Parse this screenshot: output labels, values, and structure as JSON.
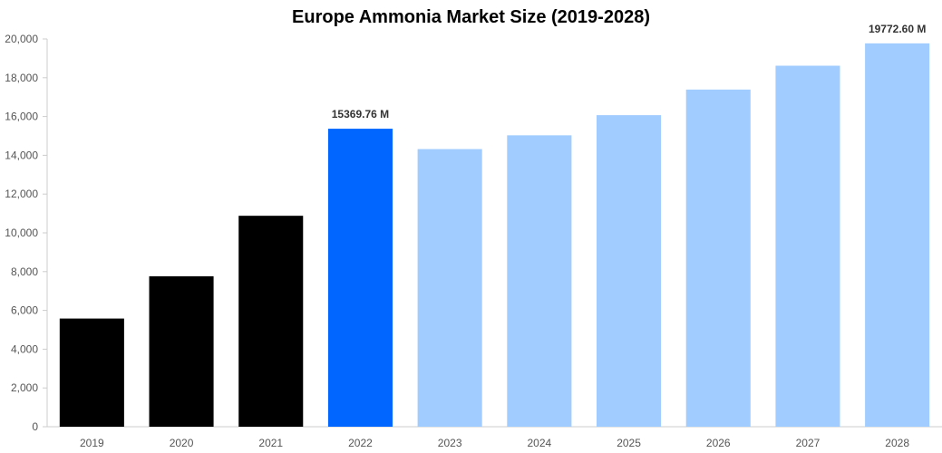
{
  "chart_data": {
    "type": "bar",
    "title": "Europe Ammonia Market Size (2019-2028)",
    "xlabel": "",
    "ylabel": "",
    "categories": [
      "2019",
      "2020",
      "2021",
      "2022",
      "2023",
      "2024",
      "2025",
      "2026",
      "2027",
      "2028"
    ],
    "values": [
      5580,
      7760,
      10880,
      15369.76,
      14320,
      15030,
      16070,
      17390,
      18620,
      19772.6
    ],
    "ylim": [
      0,
      20000
    ],
    "yticks": [
      0,
      2000,
      4000,
      6000,
      8000,
      10000,
      12000,
      14000,
      16000,
      18000,
      20000
    ],
    "ytick_labels": [
      "0",
      "2,000",
      "4,000",
      "6,000",
      "8,000",
      "10,000",
      "12,000",
      "14,000",
      "16,000",
      "18,000",
      "20,000"
    ],
    "bar_colors": [
      "#000000",
      "#000000",
      "#000000",
      "#0066ff",
      "#a0ccff",
      "#a0ccff",
      "#a0ccff",
      "#a0ccff",
      "#a0ccff",
      "#a0ccff"
    ],
    "data_labels": [
      {
        "category": "2022",
        "text": "15369.76 M"
      },
      {
        "category": "2028",
        "text": "19772.60 M"
      }
    ],
    "grid": false,
    "legend": "none"
  }
}
